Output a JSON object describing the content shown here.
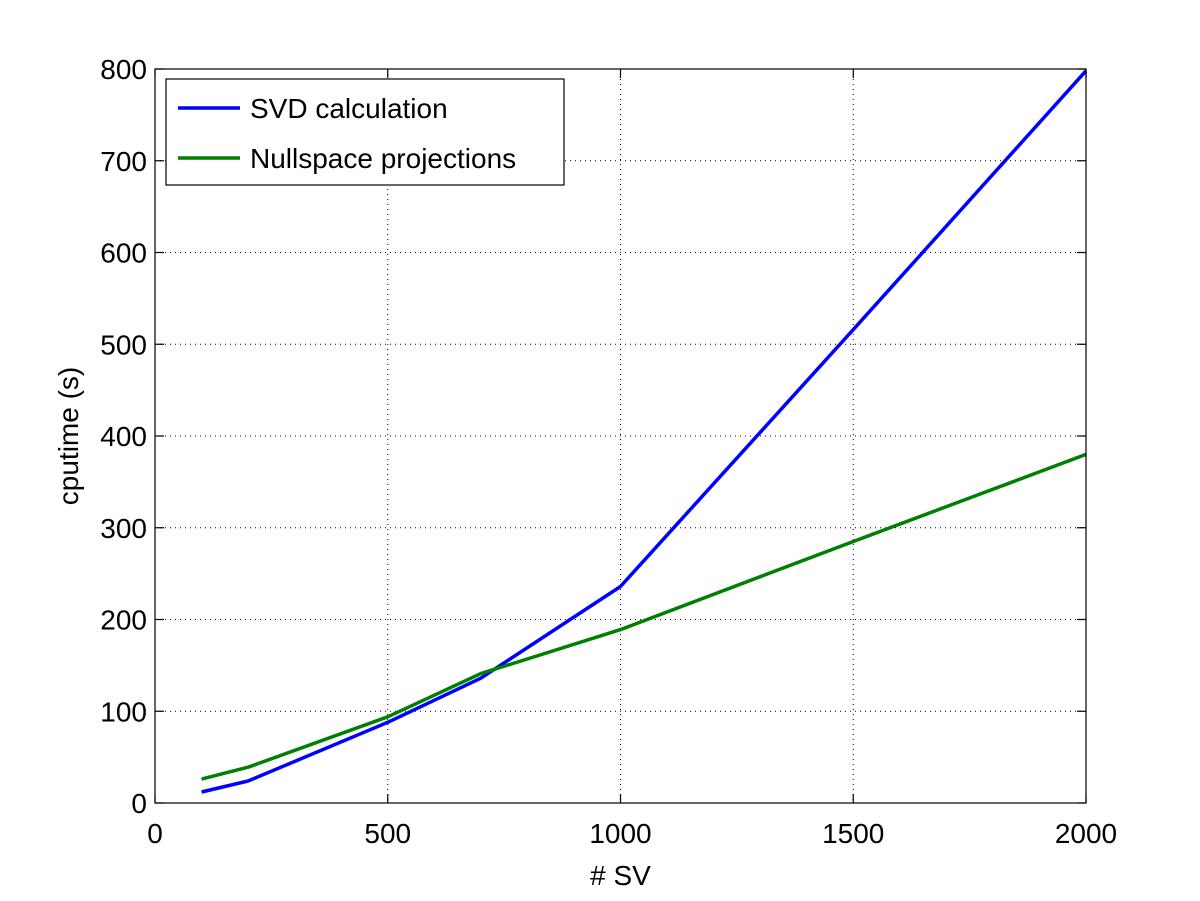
{
  "chart_data": {
    "type": "line",
    "title": "",
    "xlabel": "# SV",
    "ylabel": "cputime (s)",
    "xlim": [
      0,
      2000
    ],
    "ylim": [
      0,
      800
    ],
    "xticks": [
      0,
      500,
      1000,
      1500,
      2000
    ],
    "yticks": [
      0,
      100,
      200,
      300,
      400,
      500,
      600,
      700,
      800
    ],
    "grid": true,
    "legend_position": "top-left",
    "series": [
      {
        "name": "SVD calculation",
        "color": "#0000ff",
        "x": [
          100,
          200,
          500,
          700,
          1000,
          1500,
          2000
        ],
        "y": [
          12,
          24,
          88,
          136,
          236,
          516,
          798
        ]
      },
      {
        "name": "Nullspace projections",
        "color": "#007f00",
        "x": [
          100,
          200,
          500,
          700,
          1000,
          1500,
          2000
        ],
        "y": [
          26,
          39,
          94,
          141,
          189,
          285,
          380
        ]
      }
    ]
  }
}
